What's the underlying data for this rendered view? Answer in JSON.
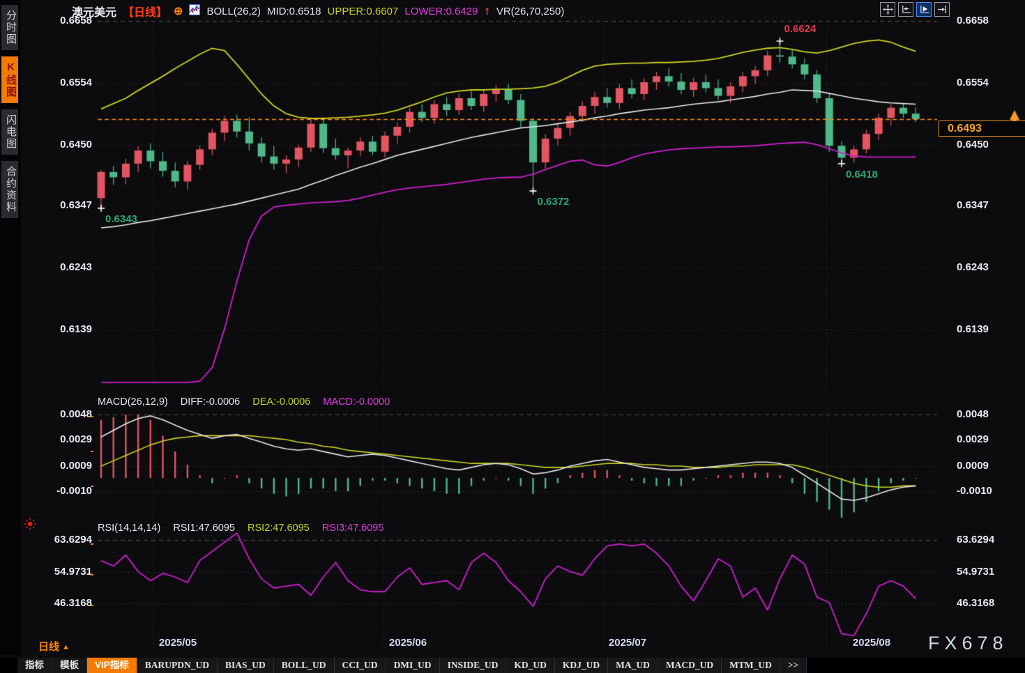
{
  "header": {
    "symbol": "澳元美元",
    "period": "【日线】",
    "boll_label": "BOLL(26,2)",
    "mid_label": "MID:0.6518",
    "upper_label": "UPPER:0.6607",
    "lower_label": "LOWER:0.6429",
    "vr_label": "VR(26,70,250)"
  },
  "sidebar": {
    "items": [
      {
        "label": "分时图",
        "name": "timeshare-chart",
        "active": false
      },
      {
        "label": "K线图",
        "name": "kline-chart",
        "active": true
      },
      {
        "label": "闪电图",
        "name": "flash-chart",
        "active": false
      },
      {
        "label": "合约资料",
        "name": "contract-info",
        "active": false
      }
    ]
  },
  "toolbar": {
    "icons": [
      {
        "name": "crosshair-icon",
        "active": false
      },
      {
        "name": "axis-pan-left-icon",
        "active": false
      },
      {
        "name": "axis-play-icon",
        "active": true
      },
      {
        "name": "collapse-right-icon",
        "active": false
      }
    ]
  },
  "bottom": {
    "period_label": "日线",
    "period_arrow": "▲",
    "watermark": "FX678",
    "tabs": [
      {
        "label": "指标",
        "active": false
      },
      {
        "label": "模板",
        "active": false
      },
      {
        "label": "VIP指标",
        "active": true
      },
      {
        "label": "BARUPDN_UD",
        "active": false
      },
      {
        "label": "BIAS_UD",
        "active": false
      },
      {
        "label": "BOLL_UD",
        "active": false
      },
      {
        "label": "CCI_UD",
        "active": false
      },
      {
        "label": "DMI_UD",
        "active": false
      },
      {
        "label": "INSIDE_UD",
        "active": false
      },
      {
        "label": "KD_UD",
        "active": false
      },
      {
        "label": "KDJ_UD",
        "active": false
      },
      {
        "label": "MA_UD",
        "active": false
      },
      {
        "label": "MACD_UD",
        "active": false
      },
      {
        "label": "MTM_UD",
        "active": false
      },
      {
        "label": ">>",
        "active": false
      }
    ]
  },
  "colors": {
    "bull_candle": "#e25561",
    "bear_candle": "#4fb98a",
    "boll_upper": "#c9d420",
    "boll_mid": "#e8e8ec",
    "boll_lower": "#cf1fcf",
    "price_line": "#ff8c1a",
    "accent_orange": "#f57a00",
    "annotation_green": "#2aa876",
    "annotation_red": "#e33c4e",
    "rsi_line": "#cf1fcf"
  },
  "chart_data": {
    "type": "candlestick+indicators",
    "x_labels": [
      "2025/05",
      "2025/06",
      "2025/07",
      "2025/08"
    ],
    "main": {
      "y_ticks": [
        "0.6658",
        "0.6554",
        "0.6450",
        "0.6347",
        "0.6243",
        "0.6139"
      ],
      "current_price": "0.6493",
      "current_price_value": 0.6493,
      "annotations": [
        {
          "text": "0.6343",
          "index": 0,
          "price": 0.6343,
          "place": "below",
          "color": "green"
        },
        {
          "text": "0.6372",
          "index": 35,
          "price": 0.6372,
          "place": "below",
          "color": "green"
        },
        {
          "text": "0.6624",
          "index": 55,
          "price": 0.6624,
          "place": "above",
          "color": "red"
        },
        {
          "text": "0.6418",
          "index": 60,
          "price": 0.6418,
          "place": "below",
          "color": "green"
        }
      ],
      "candles": [
        [
          0.636,
          0.6408,
          0.6343,
          0.6404
        ],
        [
          0.6404,
          0.6414,
          0.6382,
          0.6395
        ],
        [
          0.6395,
          0.6426,
          0.6383,
          0.6418
        ],
        [
          0.6418,
          0.6447,
          0.6404,
          0.644
        ],
        [
          0.644,
          0.6452,
          0.641,
          0.6422
        ],
        [
          0.6422,
          0.6438,
          0.6396,
          0.6406
        ],
        [
          0.6406,
          0.642,
          0.6378,
          0.6388
        ],
        [
          0.6388,
          0.6422,
          0.6374,
          0.6416
        ],
        [
          0.6416,
          0.6448,
          0.6408,
          0.6442
        ],
        [
          0.6442,
          0.6476,
          0.6432,
          0.647
        ],
        [
          0.647,
          0.6498,
          0.6456,
          0.649
        ],
        [
          0.649,
          0.65,
          0.6462,
          0.6472
        ],
        [
          0.6472,
          0.6496,
          0.644,
          0.6452
        ],
        [
          0.6452,
          0.6462,
          0.642,
          0.643
        ],
        [
          0.643,
          0.6448,
          0.6408,
          0.6418
        ],
        [
          0.6418,
          0.6432,
          0.6402,
          0.6425
        ],
        [
          0.6425,
          0.645,
          0.6412,
          0.6445
        ],
        [
          0.6445,
          0.6492,
          0.6438,
          0.6485
        ],
        [
          0.6485,
          0.6496,
          0.6436,
          0.6444
        ],
        [
          0.6444,
          0.646,
          0.6425,
          0.6432
        ],
        [
          0.6432,
          0.6445,
          0.641,
          0.644
        ],
        [
          0.644,
          0.6462,
          0.643,
          0.6455
        ],
        [
          0.6455,
          0.6465,
          0.6432,
          0.6438
        ],
        [
          0.6438,
          0.6472,
          0.6428,
          0.6465
        ],
        [
          0.6465,
          0.6488,
          0.6452,
          0.648
        ],
        [
          0.648,
          0.6512,
          0.647,
          0.6505
        ],
        [
          0.6505,
          0.6518,
          0.6488,
          0.6495
        ],
        [
          0.6495,
          0.6525,
          0.6485,
          0.6518
        ],
        [
          0.6518,
          0.653,
          0.6498,
          0.6508
        ],
        [
          0.6508,
          0.6536,
          0.65,
          0.6528
        ],
        [
          0.6528,
          0.654,
          0.6508,
          0.6515
        ],
        [
          0.6515,
          0.6542,
          0.6505,
          0.6535
        ],
        [
          0.6535,
          0.655,
          0.6522,
          0.6542
        ],
        [
          0.6542,
          0.6552,
          0.6518,
          0.6525
        ],
        [
          0.6525,
          0.6535,
          0.648,
          0.649
        ],
        [
          0.649,
          0.6495,
          0.6372,
          0.642
        ],
        [
          0.642,
          0.6468,
          0.641,
          0.646
        ],
        [
          0.646,
          0.6486,
          0.6448,
          0.6478
        ],
        [
          0.6478,
          0.6505,
          0.6465,
          0.6498
        ],
        [
          0.6498,
          0.6522,
          0.6488,
          0.6515
        ],
        [
          0.6515,
          0.6538,
          0.6502,
          0.653
        ],
        [
          0.653,
          0.6545,
          0.6512,
          0.652
        ],
        [
          0.652,
          0.6552,
          0.651,
          0.6545
        ],
        [
          0.6545,
          0.656,
          0.6528,
          0.6535
        ],
        [
          0.6535,
          0.6562,
          0.6525,
          0.6555
        ],
        [
          0.6555,
          0.6572,
          0.6542,
          0.6565
        ],
        [
          0.6565,
          0.6578,
          0.6548,
          0.6556
        ],
        [
          0.6556,
          0.657,
          0.6535,
          0.6542
        ],
        [
          0.6542,
          0.6562,
          0.653,
          0.6555
        ],
        [
          0.6555,
          0.6568,
          0.6538,
          0.6545
        ],
        [
          0.6545,
          0.656,
          0.6525,
          0.6532
        ],
        [
          0.6532,
          0.6555,
          0.652,
          0.6548
        ],
        [
          0.6548,
          0.6572,
          0.6538,
          0.6565
        ],
        [
          0.6565,
          0.6582,
          0.6552,
          0.6575
        ],
        [
          0.6575,
          0.6608,
          0.6565,
          0.66
        ],
        [
          0.66,
          0.6624,
          0.6588,
          0.6598
        ],
        [
          0.6598,
          0.661,
          0.6578,
          0.6585
        ],
        [
          0.6585,
          0.6595,
          0.656,
          0.6568
        ],
        [
          0.6568,
          0.6575,
          0.652,
          0.6528
        ],
        [
          0.6528,
          0.6535,
          0.6438,
          0.6448
        ],
        [
          0.6448,
          0.6455,
          0.6418,
          0.6428
        ],
        [
          0.6428,
          0.6448,
          0.642,
          0.6442
        ],
        [
          0.6442,
          0.6475,
          0.6435,
          0.6468
        ],
        [
          0.6468,
          0.6502,
          0.6458,
          0.6495
        ],
        [
          0.6495,
          0.6518,
          0.6482,
          0.6512
        ],
        [
          0.6512,
          0.652,
          0.6495,
          0.6502
        ],
        [
          0.6502,
          0.6512,
          0.6488,
          0.6493
        ]
      ],
      "boll_upper": [
        0.651,
        0.6519,
        0.6528,
        0.6541,
        0.6553,
        0.6565,
        0.6578,
        0.659,
        0.6602,
        0.6612,
        0.6608,
        0.6585,
        0.656,
        0.6535,
        0.6515,
        0.6502,
        0.6496,
        0.6494,
        0.6494,
        0.6495,
        0.6496,
        0.6498,
        0.65,
        0.6503,
        0.6508,
        0.6515,
        0.6522,
        0.653,
        0.6537,
        0.654,
        0.6542,
        0.6542,
        0.6543,
        0.6543,
        0.6544,
        0.6545,
        0.6548,
        0.6555,
        0.6565,
        0.6575,
        0.6582,
        0.6585,
        0.6586,
        0.6587,
        0.6587,
        0.6588,
        0.6588,
        0.6589,
        0.659,
        0.6592,
        0.6595,
        0.66,
        0.6605,
        0.6609,
        0.6612,
        0.6613,
        0.661,
        0.6606,
        0.6604,
        0.6608,
        0.6614,
        0.662,
        0.6624,
        0.6626,
        0.6622,
        0.6614,
        0.6607
      ],
      "boll_mid": [
        0.631,
        0.6312,
        0.6315,
        0.6319,
        0.6322,
        0.6326,
        0.633,
        0.6334,
        0.6338,
        0.6342,
        0.6346,
        0.635,
        0.6355,
        0.636,
        0.6365,
        0.637,
        0.6375,
        0.6383,
        0.639,
        0.6398,
        0.6405,
        0.6412,
        0.6418,
        0.6425,
        0.6432,
        0.6437,
        0.6442,
        0.6447,
        0.6452,
        0.6457,
        0.6462,
        0.6466,
        0.647,
        0.6474,
        0.6478,
        0.648,
        0.6482,
        0.6485,
        0.6488,
        0.6491,
        0.6495,
        0.6498,
        0.6502,
        0.6505,
        0.6508,
        0.651,
        0.6512,
        0.6515,
        0.6518,
        0.652,
        0.6522,
        0.6525,
        0.6528,
        0.6531,
        0.6535,
        0.6538,
        0.6542,
        0.6541,
        0.654,
        0.6536,
        0.6532,
        0.6528,
        0.6525,
        0.6522,
        0.652,
        0.6519,
        0.6518
      ],
      "boll_lower": [
        0.605,
        0.605,
        0.605,
        0.605,
        0.605,
        0.605,
        0.605,
        0.605,
        0.6052,
        0.6075,
        0.614,
        0.622,
        0.629,
        0.633,
        0.6345,
        0.6348,
        0.635,
        0.6352,
        0.6353,
        0.6354,
        0.6356,
        0.636,
        0.6365,
        0.637,
        0.6374,
        0.6377,
        0.6379,
        0.6381,
        0.6383,
        0.6386,
        0.6389,
        0.6392,
        0.6394,
        0.6395,
        0.6395,
        0.64,
        0.6408,
        0.6415,
        0.6422,
        0.6424,
        0.6416,
        0.6414,
        0.642,
        0.6428,
        0.6434,
        0.6438,
        0.6441,
        0.6443,
        0.6444,
        0.6445,
        0.6446,
        0.6446,
        0.6447,
        0.6448,
        0.645,
        0.6452,
        0.6453,
        0.6454,
        0.645,
        0.6443,
        0.6436,
        0.6431,
        0.6429,
        0.6429,
        0.6429,
        0.6429,
        0.6429
      ]
    },
    "macd": {
      "label": "MACD(26,12,9)",
      "diff_label": "DIFF:-0.0006",
      "dea_label": "DEA:-0.0006",
      "macd_label": "MACD:-0.0000",
      "y_ticks": [
        "0.0048",
        "0.0029",
        "0.0009",
        "-0.0010"
      ],
      "diff": [
        0.0031,
        0.0036,
        0.0041,
        0.0045,
        0.0047,
        0.0044,
        0.004,
        0.0036,
        0.0033,
        0.003,
        0.0032,
        0.0033,
        0.003,
        0.0027,
        0.0024,
        0.0022,
        0.0021,
        0.0022,
        0.002,
        0.0018,
        0.0016,
        0.0017,
        0.0018,
        0.0017,
        0.0015,
        0.0013,
        0.0011,
        0.0009,
        0.0007,
        0.0006,
        0.0008,
        0.001,
        0.0011,
        0.001,
        0.0007,
        0.0003,
        0.0004,
        0.0006,
        0.0009,
        0.0011,
        0.0013,
        0.0014,
        0.0012,
        0.001,
        0.0008,
        0.0007,
        0.0006,
        0.0006,
        0.0007,
        0.0008,
        0.0009,
        0.001,
        0.0011,
        0.0012,
        0.0012,
        0.0011,
        0.0008,
        0.0002,
        -0.0004,
        -0.001,
        -0.0016,
        -0.0017,
        -0.0015,
        -0.0012,
        -0.0009,
        -0.0007,
        -0.0006
      ],
      "dea": [
        0.0009,
        0.0013,
        0.0017,
        0.0021,
        0.0025,
        0.0028,
        0.003,
        0.0031,
        0.0032,
        0.0032,
        0.0032,
        0.0032,
        0.0032,
        0.0031,
        0.003,
        0.0029,
        0.0027,
        0.0026,
        0.0024,
        0.0023,
        0.0021,
        0.002,
        0.0019,
        0.0018,
        0.0017,
        0.0016,
        0.0015,
        0.0014,
        0.0013,
        0.0012,
        0.0011,
        0.0011,
        0.0011,
        0.0011,
        0.001,
        0.0009,
        0.0008,
        0.0008,
        0.0008,
        0.0009,
        0.001,
        0.0011,
        0.0011,
        0.0011,
        0.001,
        0.001,
        0.0009,
        0.0009,
        0.0008,
        0.0008,
        0.0008,
        0.0009,
        0.0009,
        0.001,
        0.001,
        0.001,
        0.001,
        0.0008,
        0.0005,
        0.0002,
        -0.0001,
        -0.0004,
        -0.0006,
        -0.0007,
        -0.0007,
        -0.0006,
        -0.0006
      ]
    },
    "rsi": {
      "label": "RSI(14,14,14)",
      "rsi1_label": "RSI1:47.6095",
      "rsi2_label": "RSI2:47.6095",
      "rsi3_label": "RSI3:47.6095",
      "y_ticks": [
        "63.6294",
        "54.9731",
        "46.3168"
      ],
      "values": [
        58,
        56.5,
        59.5,
        55,
        52.5,
        54.5,
        53.5,
        52,
        58,
        60.5,
        63,
        65.5,
        58.5,
        53,
        50.5,
        51,
        51.5,
        48.5,
        53.5,
        57.5,
        52.5,
        50,
        49.5,
        49.5,
        53.5,
        56,
        51.5,
        52,
        52.5,
        50,
        57.5,
        60,
        57.5,
        52.5,
        49.5,
        45.5,
        53,
        56.5,
        55,
        54,
        58.5,
        62,
        62.5,
        62,
        62.5,
        60,
        56.5,
        51,
        47,
        52.5,
        58.5,
        56.5,
        48,
        50.5,
        44.5,
        53,
        59.5,
        57,
        48,
        46.5,
        38,
        37.5,
        43.5,
        51,
        52.5,
        51,
        47.6
      ]
    }
  }
}
